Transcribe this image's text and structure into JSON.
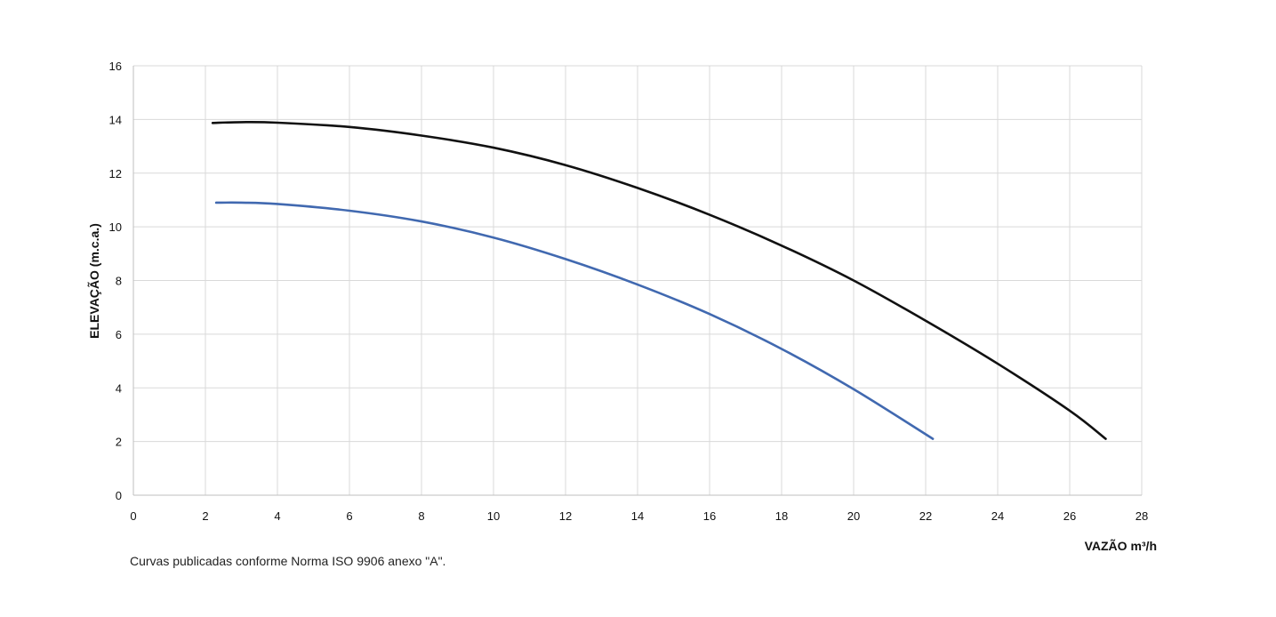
{
  "chart_data": {
    "type": "line",
    "xlabel": "VAZÃO m³/h",
    "ylabel": "ELEVAÇÃO (m.c.a.)",
    "xlim": [
      0,
      28
    ],
    "ylim": [
      0,
      16
    ],
    "x_ticks": [
      "0",
      "2",
      "4",
      "6",
      "8",
      "10",
      "12",
      "14",
      "16",
      "18",
      "20",
      "22",
      "24",
      "26",
      "28"
    ],
    "y_ticks": [
      "0",
      "2",
      "4",
      "6",
      "8",
      "10",
      "12",
      "14",
      "16"
    ],
    "grid": true,
    "legend": "none",
    "series": [
      {
        "color": "#111111",
        "x": [
          2.2,
          3,
          4,
          6,
          8,
          10,
          12,
          14,
          16,
          18,
          20,
          22,
          24,
          26,
          27
        ],
        "y": [
          13.87,
          13.9,
          13.88,
          13.72,
          13.4,
          12.95,
          12.3,
          11.45,
          10.45,
          9.3,
          8.0,
          6.5,
          4.9,
          3.15,
          2.1
        ]
      },
      {
        "color": "#4169b0",
        "x": [
          2.3,
          3,
          4,
          6,
          8,
          10,
          12,
          14,
          16,
          18,
          20,
          22.2
        ],
        "y": [
          10.9,
          10.9,
          10.85,
          10.6,
          10.2,
          9.6,
          8.8,
          7.85,
          6.75,
          5.45,
          3.95,
          2.1
        ]
      }
    ]
  },
  "footnote": "Curvas publicadas conforme Norma ISO 9906 anexo \"A\"."
}
